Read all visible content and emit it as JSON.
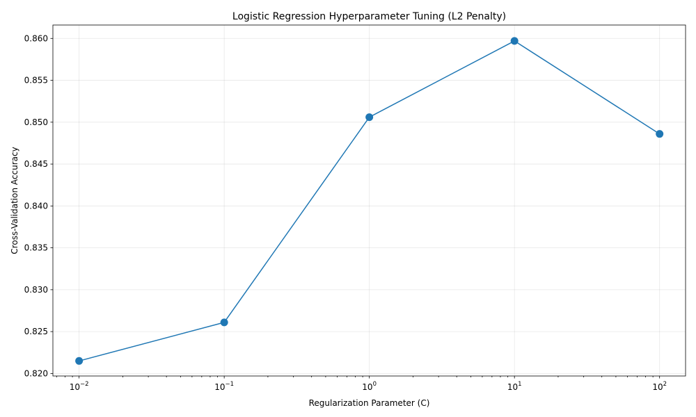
{
  "chart_data": {
    "type": "line",
    "title": "Logistic Regression Hyperparameter Tuning (L2 Penalty)",
    "xlabel": "Regularization Parameter (C)",
    "ylabel": "Cross-Validation Accuracy",
    "x_scale": "log",
    "x": [
      0.01,
      0.1,
      1,
      10,
      100
    ],
    "x_tick_values": [
      0.01,
      0.1,
      1,
      10,
      100
    ],
    "x_tick_labels": [
      {
        "base": "10",
        "exp": "−2"
      },
      {
        "base": "10",
        "exp": "−1"
      },
      {
        "base": "10",
        "exp": "0"
      },
      {
        "base": "10",
        "exp": "1"
      },
      {
        "base": "10",
        "exp": "2"
      }
    ],
    "xlim": [
      0.0066,
      151
    ],
    "series": [
      {
        "values": [
          0.8215,
          0.8261,
          0.8506,
          0.8597,
          0.8486
        ],
        "color": "#1f77b4",
        "marker": "circle"
      }
    ],
    "ylim": [
      0.8197,
      0.8616
    ],
    "y_ticks": [
      0.82,
      0.825,
      0.83,
      0.835,
      0.84,
      0.845,
      0.85,
      0.855,
      0.86
    ],
    "y_tick_labels": [
      "0.820",
      "0.825",
      "0.830",
      "0.835",
      "0.840",
      "0.845",
      "0.850",
      "0.855",
      "0.860"
    ],
    "grid": true,
    "legend": "none"
  }
}
